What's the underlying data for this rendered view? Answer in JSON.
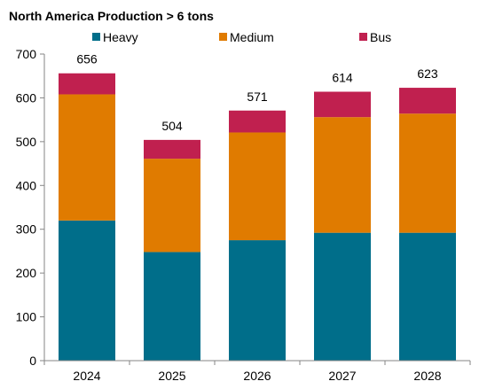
{
  "chart_data": {
    "type": "bar",
    "stacked": true,
    "title": "North America Production > 6 tons",
    "categories": [
      "2024",
      "2025",
      "2026",
      "2027",
      "2028"
    ],
    "series": [
      {
        "name": "Heavy",
        "color": "#006E8A",
        "values": [
          320,
          248,
          275,
          292,
          292
        ]
      },
      {
        "name": "Medium",
        "color": "#E07B00",
        "values": [
          288,
          213,
          246,
          264,
          272
        ]
      },
      {
        "name": "Bus",
        "color": "#C0204F",
        "values": [
          48,
          43,
          50,
          58,
          59
        ]
      }
    ],
    "totals": [
      "656",
      "504",
      "571",
      "614",
      "623"
    ],
    "ylim": [
      0,
      700
    ],
    "yticks": [
      "0",
      "100",
      "200",
      "300",
      "400",
      "500",
      "600",
      "700"
    ],
    "grid": false,
    "legend_position": "top"
  }
}
